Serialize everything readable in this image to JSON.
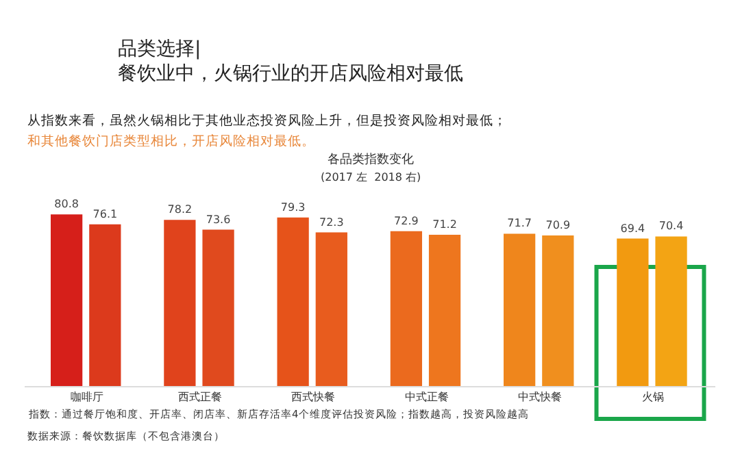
{
  "chart_data": {
    "type": "bar",
    "title": "品类选择|\n餐饮业中，火锅行业的开店风险相对最低",
    "subtitle": "各品类指数变化",
    "annotations": [
      "从指数来看，虽然火锅相比于其他业态投资风险上升，但是投资风险相对最低；",
      "和其他餐饮门店类型相比，开店风险相对最低。",
      "(2017 左  2018 右)",
      "指数：通过餐厅饱和度、开店率、闭店率、新店存活率4个维度评估投资风险；指数越高，投资风险越高",
      "数据来源：餐饮数据库（不包含港澳台）"
    ],
    "categories": [
      "咖啡厅",
      "西式正餐",
      "西式快餐",
      "中式正餐",
      "中式快餐",
      "火锅"
    ],
    "series": [
      {
        "colors": [
          "#d61f1a",
          "#e0431c",
          "#e6531a",
          "#eb6a1e",
          "#ef861c",
          "#f29a10"
        ],
        "values": [
          80.8,
          78.2,
          79.3,
          72.9,
          71.7,
          69.4
        ]
      },
      {
        "colors": [
          "#dc3a1c",
          "#e04a1e",
          "#e85c1e",
          "#ee761e",
          "#f08f1e",
          "#f3a414"
        ],
        "values": [
          76.1,
          73.6,
          72.3,
          71.2,
          70.9,
          70.4
        ]
      }
    ],
    "tick_labels": "x",
    "data_labels": true
  }
}
